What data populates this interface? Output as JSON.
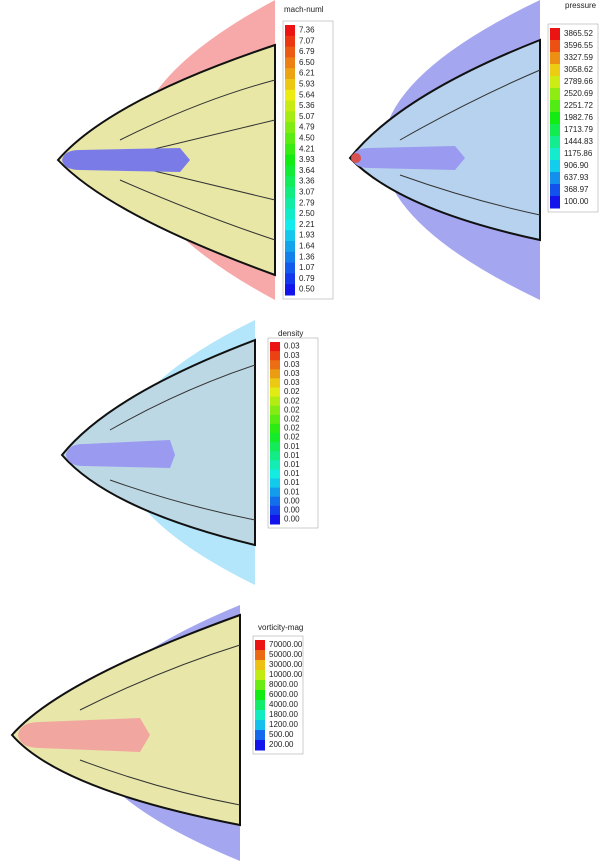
{
  "panels": [
    {
      "title": "mach-numl",
      "labels": [
        "7.36",
        "7.07",
        "6.79",
        "6.50",
        "6.21",
        "5.93",
        "5.64",
        "5.36",
        "5.07",
        "4.79",
        "4.50",
        "4.21",
        "3.93",
        "3.64",
        "3.36",
        "3.07",
        "2.79",
        "2.50",
        "2.21",
        "1.93",
        "1.64",
        "1.36",
        "1.07",
        "0.79",
        "0.50"
      ]
    },
    {
      "title": "pressure",
      "labels": [
        "3865.52",
        "3596.55",
        "3327.59",
        "3058.62",
        "2789.66",
        "2520.69",
        "2251.72",
        "1982.76",
        "1713.79",
        "1444.83",
        "1175.86",
        "906.90",
        "637.93",
        "368.97",
        "100.00"
      ]
    },
    {
      "title": "density",
      "labels": [
        "0.03",
        "0.03",
        "0.03",
        "0.03",
        "0.03",
        "0.02",
        "0.02",
        "0.02",
        "0.02",
        "0.02",
        "0.02",
        "0.01",
        "0.01",
        "0.01",
        "0.01",
        "0.01",
        "0.01",
        "0.00",
        "0.00",
        "0.00"
      ]
    },
    {
      "title": "vorticity-mag",
      "labels": [
        "70000.00",
        "50000.00",
        "30000.00",
        "10000.00",
        "8000.00",
        "6000.00",
        "4000.00",
        "1800.00",
        "1200.00",
        "500.00",
        "200.00"
      ]
    }
  ]
}
